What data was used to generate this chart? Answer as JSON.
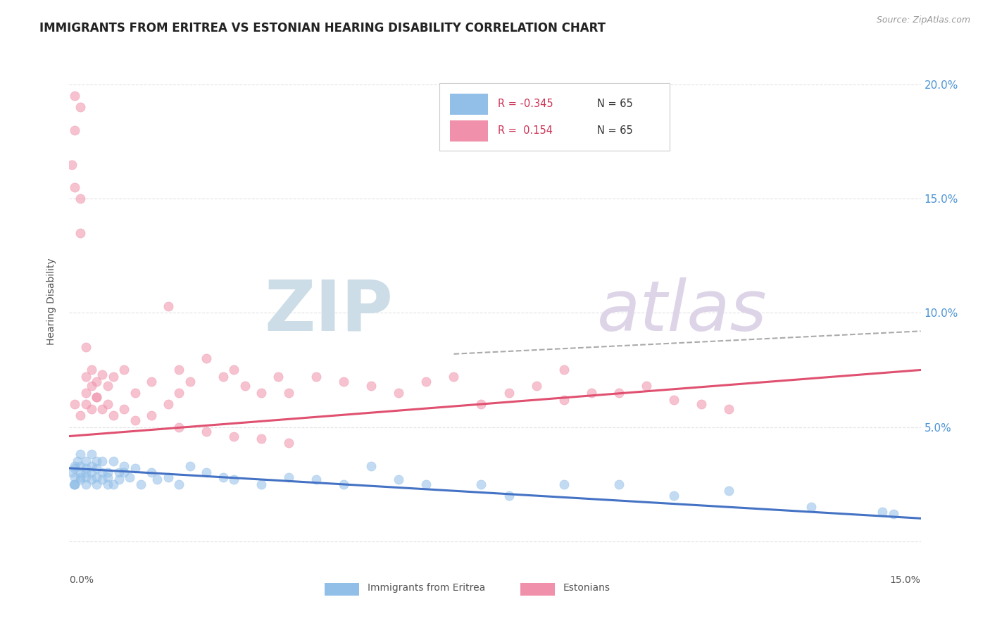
{
  "title": "IMMIGRANTS FROM ERITREA VS ESTONIAN HEARING DISABILITY CORRELATION CHART",
  "source": "Source: ZipAtlas.com",
  "ylabel": "Hearing Disability",
  "xlim": [
    0.0,
    0.155
  ],
  "ylim": [
    -0.005,
    0.215
  ],
  "yticks": [
    0.0,
    0.05,
    0.1,
    0.15,
    0.2
  ],
  "ytick_labels": [
    "",
    "5.0%",
    "10.0%",
    "15.0%",
    "20.0%"
  ],
  "xticks": [
    0.0,
    0.05,
    0.1,
    0.15
  ],
  "legend_R1": "R = -0.345",
  "legend_N1": "N = 65",
  "legend_R2": "R =  0.154",
  "legend_N2": "N = 65",
  "series1_name": "Immigrants from Eritrea",
  "series1_color": "#92bfe8",
  "series2_name": "Estonians",
  "series2_color": "#f090aa",
  "blue_scatter_x": [
    0.0005,
    0.001,
    0.001,
    0.001,
    0.001,
    0.0015,
    0.002,
    0.002,
    0.002,
    0.002,
    0.003,
    0.003,
    0.003,
    0.003,
    0.003,
    0.004,
    0.004,
    0.004,
    0.004,
    0.005,
    0.005,
    0.005,
    0.005,
    0.006,
    0.006,
    0.006,
    0.007,
    0.007,
    0.007,
    0.008,
    0.008,
    0.009,
    0.009,
    0.01,
    0.01,
    0.011,
    0.012,
    0.013,
    0.015,
    0.016,
    0.018,
    0.02,
    0.022,
    0.025,
    0.028,
    0.03,
    0.035,
    0.04,
    0.045,
    0.05,
    0.055,
    0.06,
    0.065,
    0.075,
    0.08,
    0.09,
    0.1,
    0.11,
    0.12,
    0.135,
    0.148,
    0.15,
    0.001,
    0.0008,
    0.002
  ],
  "blue_scatter_y": [
    0.03,
    0.028,
    0.033,
    0.025,
    0.032,
    0.035,
    0.027,
    0.03,
    0.033,
    0.038,
    0.025,
    0.028,
    0.032,
    0.035,
    0.03,
    0.027,
    0.03,
    0.033,
    0.038,
    0.025,
    0.028,
    0.032,
    0.035,
    0.027,
    0.03,
    0.035,
    0.025,
    0.03,
    0.028,
    0.035,
    0.025,
    0.03,
    0.027,
    0.033,
    0.03,
    0.028,
    0.032,
    0.025,
    0.03,
    0.027,
    0.028,
    0.025,
    0.033,
    0.03,
    0.028,
    0.027,
    0.025,
    0.028,
    0.027,
    0.025,
    0.033,
    0.027,
    0.025,
    0.025,
    0.02,
    0.025,
    0.025,
    0.02,
    0.022,
    0.015,
    0.013,
    0.012,
    0.025,
    0.025,
    0.028
  ],
  "pink_scatter_x": [
    0.0005,
    0.001,
    0.001,
    0.001,
    0.002,
    0.002,
    0.002,
    0.003,
    0.003,
    0.003,
    0.004,
    0.004,
    0.005,
    0.005,
    0.006,
    0.007,
    0.008,
    0.01,
    0.012,
    0.015,
    0.018,
    0.02,
    0.02,
    0.022,
    0.025,
    0.028,
    0.03,
    0.032,
    0.035,
    0.038,
    0.04,
    0.045,
    0.05,
    0.055,
    0.06,
    0.065,
    0.07,
    0.075,
    0.08,
    0.085,
    0.09,
    0.09,
    0.095,
    0.1,
    0.105,
    0.11,
    0.115,
    0.12,
    0.001,
    0.002,
    0.003,
    0.004,
    0.005,
    0.006,
    0.007,
    0.008,
    0.01,
    0.012,
    0.015,
    0.018,
    0.02,
    0.025,
    0.03,
    0.035,
    0.04
  ],
  "pink_scatter_y": [
    0.165,
    0.18,
    0.195,
    0.155,
    0.19,
    0.15,
    0.135,
    0.085,
    0.072,
    0.065,
    0.075,
    0.068,
    0.07,
    0.063,
    0.073,
    0.068,
    0.072,
    0.075,
    0.065,
    0.07,
    0.06,
    0.075,
    0.065,
    0.07,
    0.08,
    0.072,
    0.075,
    0.068,
    0.065,
    0.072,
    0.065,
    0.072,
    0.07,
    0.068,
    0.065,
    0.07,
    0.072,
    0.06,
    0.065,
    0.068,
    0.062,
    0.075,
    0.065,
    0.065,
    0.068,
    0.062,
    0.06,
    0.058,
    0.06,
    0.055,
    0.06,
    0.058,
    0.063,
    0.058,
    0.06,
    0.055,
    0.058,
    0.053,
    0.055,
    0.103,
    0.05,
    0.048,
    0.046,
    0.045,
    0.043
  ],
  "blue_trend_x": [
    0.0,
    0.155
  ],
  "blue_trend_y": [
    0.032,
    0.01
  ],
  "pink_trend_x": [
    0.0,
    0.155
  ],
  "pink_trend_y": [
    0.046,
    0.075
  ],
  "dash_trend_x": [
    0.07,
    0.155
  ],
  "dash_trend_y": [
    0.082,
    0.092
  ],
  "title_color": "#222222",
  "title_fontsize": 12,
  "background_color": "#ffffff",
  "grid_color": "#dddddd",
  "watermark_zip_color": "#d8e8f0",
  "watermark_atlas_color": "#e0d8e8"
}
